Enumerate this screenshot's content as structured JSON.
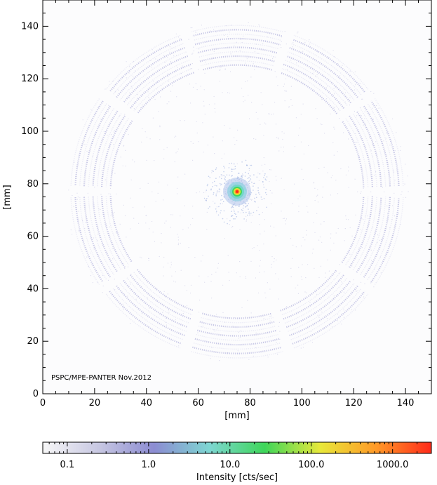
{
  "chart_data": [
    {
      "type": "heatmap",
      "title": "",
      "xlabel": "[mm]",
      "ylabel": "[mm]",
      "xlim": [
        0,
        150
      ],
      "ylim": [
        0,
        150
      ],
      "x_ticks": [
        0,
        20,
        40,
        60,
        80,
        100,
        120,
        140
      ],
      "y_ticks": [
        0,
        20,
        40,
        60,
        80,
        100,
        120,
        140
      ],
      "annotation": "PSPC/MPE-PANTER Nov.2012",
      "hot_spot": {
        "x": 75,
        "y": 77,
        "peak_intensity": 3000
      },
      "ring_pattern": {
        "center": [
          75,
          77
        ],
        "inner_radius": 48,
        "outer_radius": 65,
        "sectors": 10,
        "shells": 5,
        "gap_angles_deg": [
          0,
          36,
          72,
          108,
          144,
          180,
          216,
          252,
          288,
          324
        ]
      },
      "grid": false
    },
    {
      "type": "colorbar",
      "scale": "log",
      "label": "Intensity [cts/sec]",
      "range": [
        0.05,
        3000
      ],
      "tick_labels": [
        "0.1",
        "1.0",
        "10.0",
        "100.0",
        "1000.0"
      ],
      "tick_values": [
        0.1,
        1,
        10,
        100,
        1000
      ],
      "colors": [
        "#f7f7f7",
        "#c8c8e2",
        "#8c8cd2",
        "#7ed6d2",
        "#3ed65a",
        "#e8e83a",
        "#ff9a28",
        "#ff2a1a"
      ]
    }
  ]
}
